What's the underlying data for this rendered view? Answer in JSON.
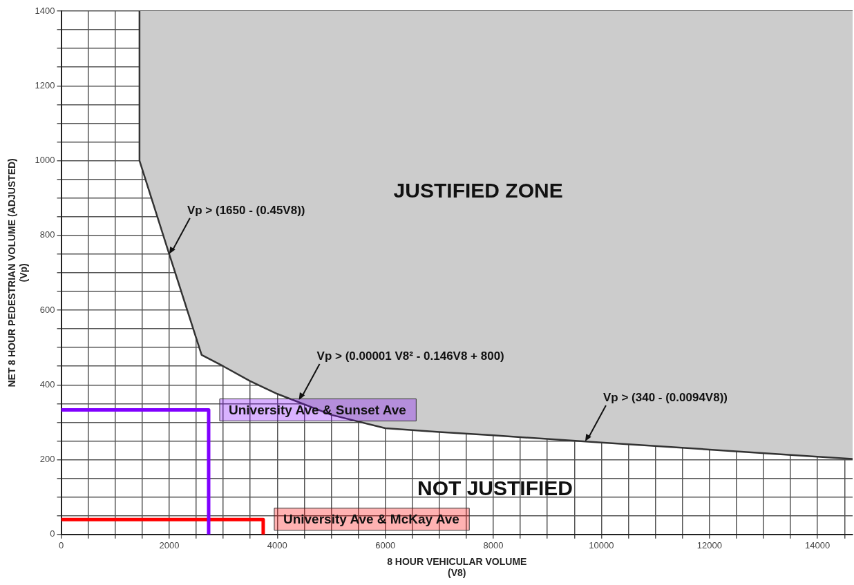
{
  "chart_data": {
    "type": "line",
    "xlabel": "8 HOUR VEHICULAR VOLUME\n(V8)",
    "ylabel": "NET 8 HOUR PEDESTRIAN VOLUME (ADJUSTED)\n(Vp)",
    "xlim": [
      0,
      14650
    ],
    "ylim": [
      0,
      1400
    ],
    "xticks": [
      0,
      {
        "value": 500,
        "label": null
      },
      {
        "value": 1000,
        "label": null
      },
      {
        "value": 1500,
        "label": null
      },
      2000,
      {
        "value": 2500,
        "label": null
      },
      {
        "value": 3000,
        "label": null
      },
      {
        "value": 3500,
        "label": null
      },
      4000,
      {
        "value": 4500,
        "label": null
      },
      {
        "value": 5000,
        "label": null
      },
      {
        "value": 5500,
        "label": null
      },
      6000,
      {
        "value": 6500,
        "label": null
      },
      {
        "value": 7000,
        "label": null
      },
      {
        "value": 7500,
        "label": null
      },
      8000,
      {
        "value": 8500,
        "label": null
      },
      {
        "value": 9000,
        "label": null
      },
      {
        "value": 9500,
        "label": null
      },
      10000,
      {
        "value": 10500,
        "label": null
      },
      {
        "value": 11000,
        "label": null
      },
      {
        "value": 11500,
        "label": null
      },
      12000,
      {
        "value": 12500,
        "label": null
      },
      {
        "value": 13000,
        "label": null
      },
      {
        "value": 13500,
        "label": null
      },
      14000,
      {
        "value": 14500,
        "label": null
      }
    ],
    "yticks": [
      0,
      {
        "value": 50,
        "label": null
      },
      {
        "value": 100,
        "label": null
      },
      {
        "value": 150,
        "label": null
      },
      200,
      {
        "value": 250,
        "label": null
      },
      {
        "value": 300,
        "label": null
      },
      {
        "value": 350,
        "label": null
      },
      400,
      {
        "value": 450,
        "label": null
      },
      {
        "value": 500,
        "label": null
      },
      {
        "value": 550,
        "label": null
      },
      600,
      {
        "value": 650,
        "label": null
      },
      {
        "value": 700,
        "label": null
      },
      {
        "value": 750,
        "label": null
      },
      800,
      {
        "value": 850,
        "label": null
      },
      {
        "value": 900,
        "label": null
      },
      {
        "value": 950,
        "label": null
      },
      1000,
      {
        "value": 1050,
        "label": null
      },
      {
        "value": 1100,
        "label": null
      },
      {
        "value": 1150,
        "label": null
      },
      1200,
      {
        "value": 1250,
        "label": null
      },
      {
        "value": 1300,
        "label": null
      },
      {
        "value": 1350,
        "label": null
      },
      1400
    ],
    "grid": true,
    "legend": false,
    "marker": "none",
    "line_style": "solid",
    "series": [
      {
        "type": "area",
        "color": "#cccccc",
        "x": [
          1450,
          1450,
          2000,
          2600,
          3000,
          3500,
          4000,
          5000,
          6000,
          7000,
          8000,
          10000,
          12000,
          14000,
          14650,
          14650
        ],
        "values": [
          1400,
          1000,
          750,
          480,
          450,
          410,
          376,
          320,
          284,
          274,
          265,
          246,
          227,
          208,
          202,
          1400
        ]
      },
      {
        "name": "University Ave & Sunset Ave",
        "color": "#8000ff",
        "x": [
          0,
          2730,
          2730
        ],
        "values": [
          333,
          333,
          0
        ]
      },
      {
        "name": "University Ave & McKay Ave",
        "color": "#ff0000",
        "x": [
          0,
          3740,
          3740
        ],
        "values": [
          40,
          40,
          0
        ]
      }
    ],
    "annotations": [
      "JUSTIFIED ZONE",
      "NOT JUSTIFIED",
      {
        "text": "Vp > (1650 - (0.45V8))",
        "x": 2000,
        "y": 750
      },
      {
        "text": "Vp > (0.00001 V8² - 0.146V8 + 800)",
        "x": 4400,
        "y": 360
      },
      {
        "text": "Vp > (340 - (0.0094V8))",
        "x": 9700,
        "y": 249
      }
    ]
  }
}
